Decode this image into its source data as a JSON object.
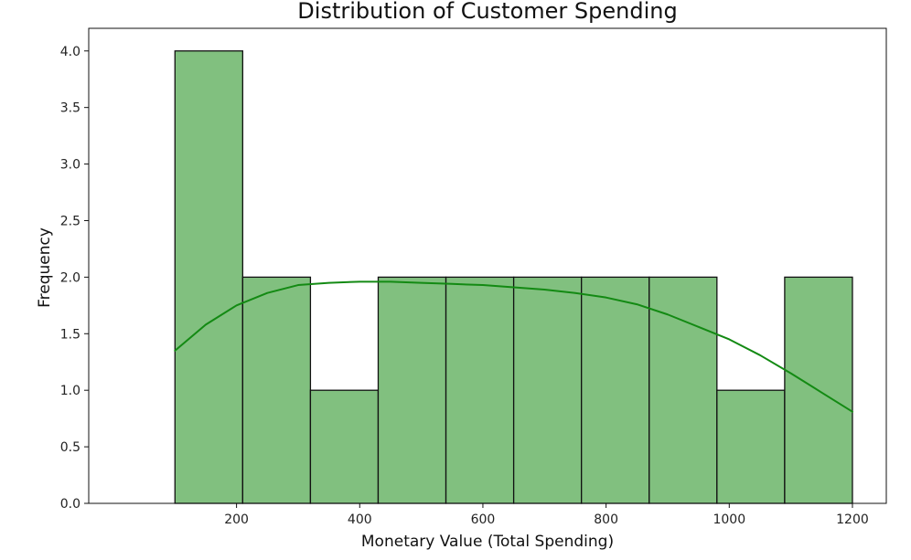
{
  "chart_data": {
    "type": "histogram",
    "title": "Distribution of Customer Spending",
    "xlabel": "Monetary Value (Total Spending)",
    "ylabel": "Frequency",
    "xlim": [
      -40,
      1255
    ],
    "ylim": [
      0.0,
      4.2
    ],
    "x_ticks": [
      200,
      400,
      600,
      800,
      1000,
      1200
    ],
    "y_ticks": [
      0.0,
      0.5,
      1.0,
      1.5,
      2.0,
      2.5,
      3.0,
      3.5,
      4.0
    ],
    "grid": false,
    "bins": [
      {
        "start": 100,
        "end": 210,
        "count": 4
      },
      {
        "start": 210,
        "end": 320,
        "count": 2
      },
      {
        "start": 320,
        "end": 430,
        "count": 1
      },
      {
        "start": 430,
        "end": 540,
        "count": 2
      },
      {
        "start": 540,
        "end": 650,
        "count": 2
      },
      {
        "start": 650,
        "end": 760,
        "count": 2
      },
      {
        "start": 760,
        "end": 870,
        "count": 2
      },
      {
        "start": 870,
        "end": 980,
        "count": 2
      },
      {
        "start": 980,
        "end": 1090,
        "count": 1
      },
      {
        "start": 1090,
        "end": 1200,
        "count": 2
      }
    ],
    "kde": {
      "x": [
        100,
        150,
        200,
        250,
        300,
        350,
        400,
        450,
        500,
        550,
        600,
        650,
        700,
        750,
        800,
        850,
        900,
        950,
        1000,
        1050,
        1100,
        1150,
        1200
      ],
      "y": [
        1.35,
        1.58,
        1.75,
        1.86,
        1.93,
        1.95,
        1.96,
        1.96,
        1.95,
        1.94,
        1.93,
        1.91,
        1.89,
        1.86,
        1.82,
        1.76,
        1.67,
        1.56,
        1.45,
        1.31,
        1.15,
        0.98,
        0.81
      ]
    },
    "colors": {
      "bar_fill": "#81c07f",
      "bar_edge": "#111111",
      "kde_line": "#138a13"
    }
  }
}
